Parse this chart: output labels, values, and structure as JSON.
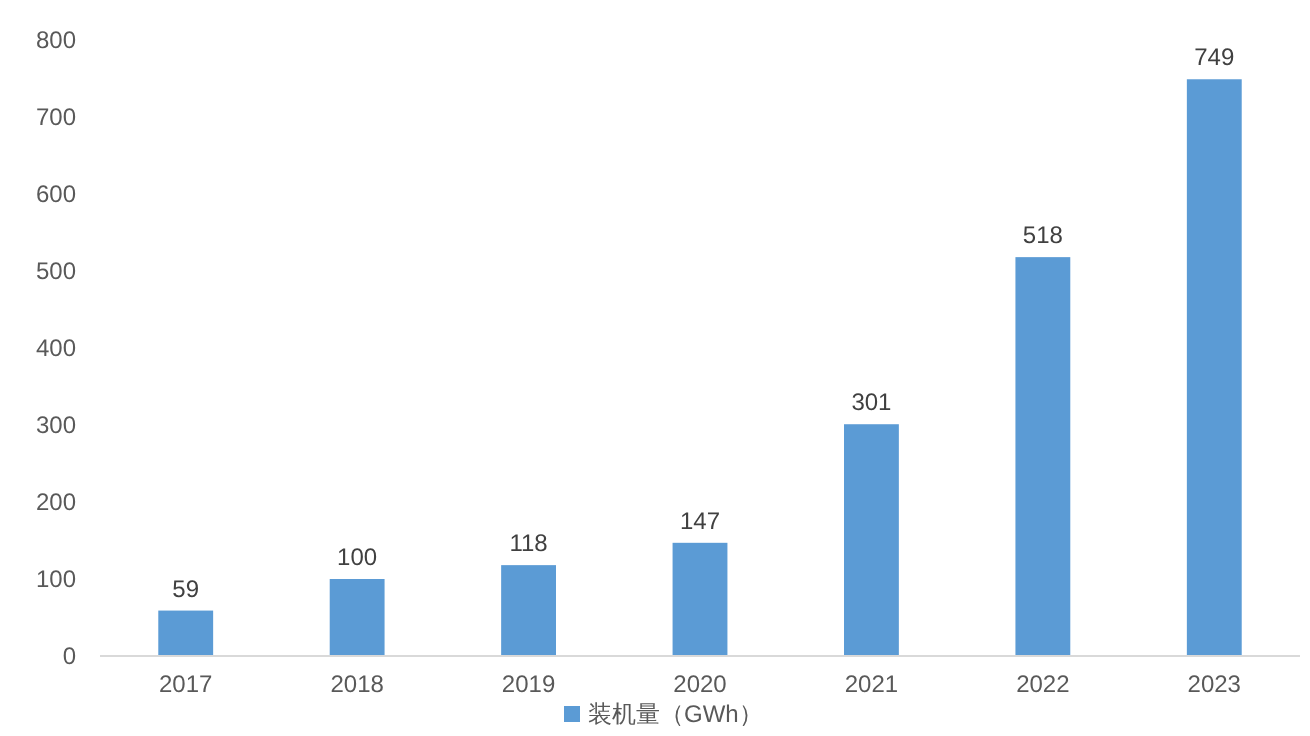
{
  "chart_data": {
    "type": "bar",
    "categories": [
      "2017",
      "2018",
      "2019",
      "2020",
      "2021",
      "2022",
      "2023"
    ],
    "series": [
      {
        "name": "装机量（GWh）",
        "color": "#5b9bd5",
        "values": [
          59,
          100,
          118,
          147,
          301,
          518,
          749
        ]
      }
    ],
    "ylim": [
      0,
      800
    ],
    "yticks": [
      0,
      100,
      200,
      300,
      400,
      500,
      600,
      700,
      800
    ],
    "data_labels": true,
    "legend": "bottom",
    "grid": false
  }
}
